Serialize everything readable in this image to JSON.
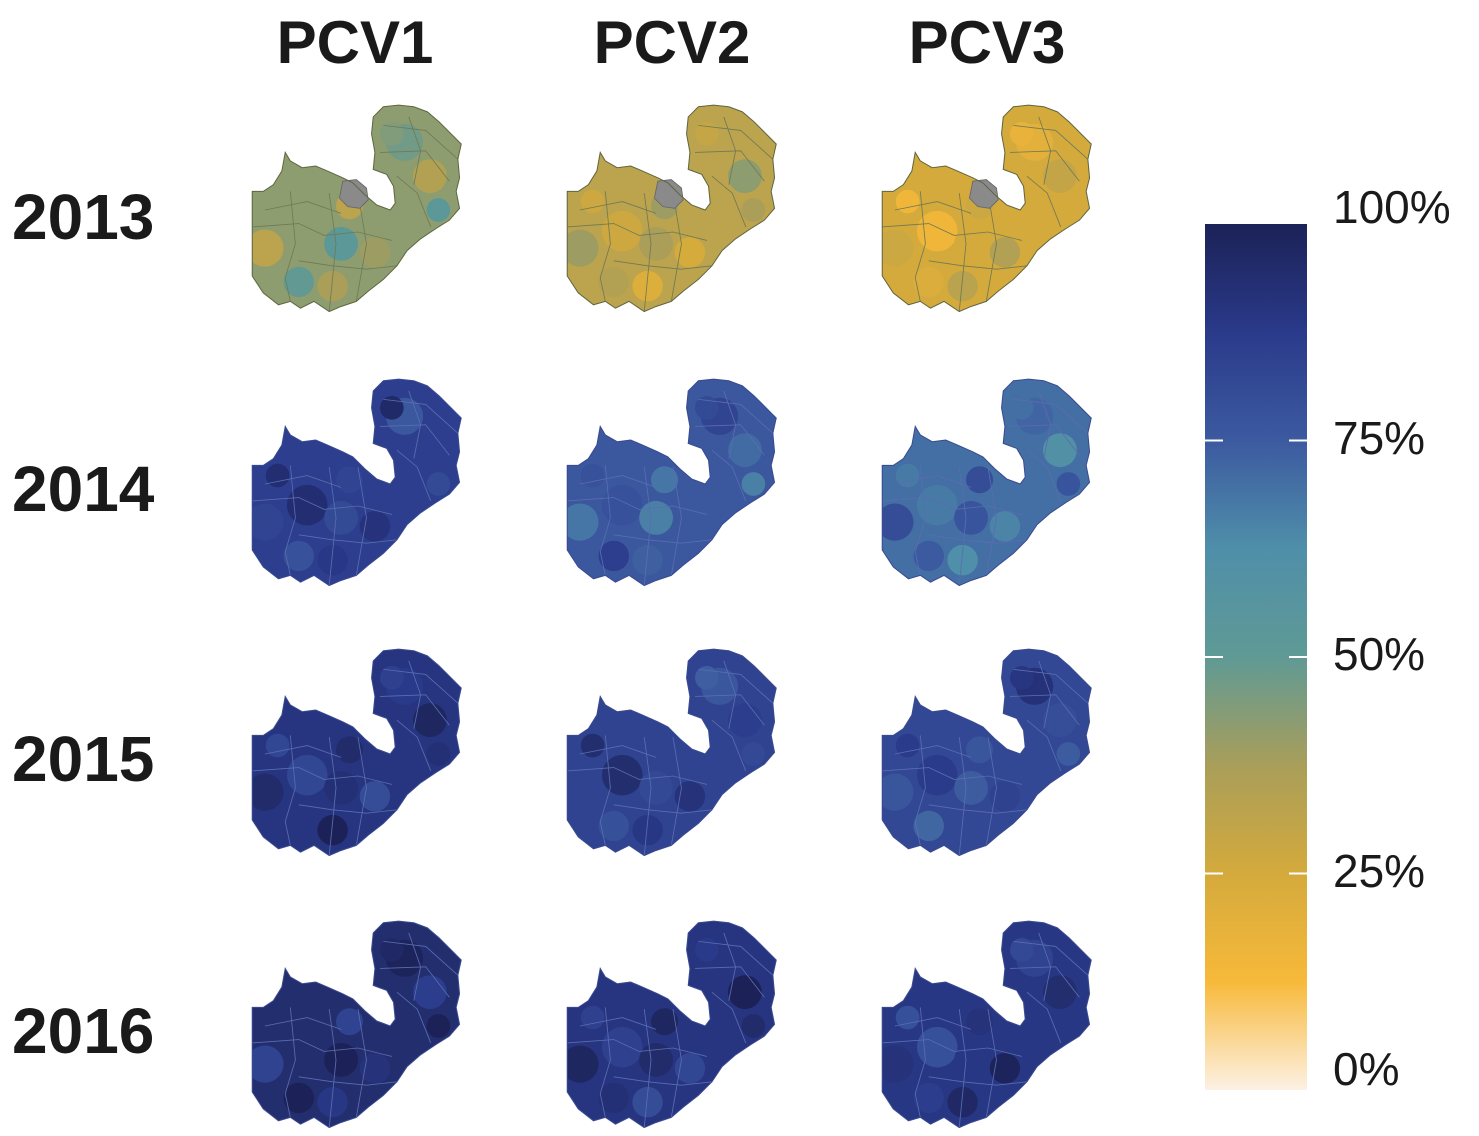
{
  "columns": [
    {
      "label": "PCV1"
    },
    {
      "label": "PCV2"
    },
    {
      "label": "PCV3"
    }
  ],
  "rows": [
    {
      "label": "2013"
    },
    {
      "label": "2014"
    },
    {
      "label": "2015"
    },
    {
      "label": "2016"
    }
  ],
  "legend": {
    "ticks": [
      {
        "value": 100,
        "label": "100%"
      },
      {
        "value": 75,
        "label": "75%"
      },
      {
        "value": 50,
        "label": "50%"
      },
      {
        "value": 25,
        "label": "25%"
      },
      {
        "value": 0,
        "label": "0%"
      }
    ],
    "scale_colors": [
      "#fdf1e4",
      "#f7b93a",
      "#d4aa3c",
      "#a99e5a",
      "#5f9a95",
      "#4f8fa9",
      "#3c5aa0",
      "#2a3a8a",
      "#1c2257"
    ],
    "missing_color": "#8a8a8a"
  },
  "maps": [
    {
      "year": "2013",
      "dose": "PCV1",
      "coverage_level": 0.42
    },
    {
      "year": "2013",
      "dose": "PCV2",
      "coverage_level": 0.32
    },
    {
      "year": "2013",
      "dose": "PCV3",
      "coverage_level": 0.25
    },
    {
      "year": "2014",
      "dose": "PCV1",
      "coverage_level": 0.86
    },
    {
      "year": "2014",
      "dose": "PCV2",
      "coverage_level": 0.76
    },
    {
      "year": "2014",
      "dose": "PCV3",
      "coverage_level": 0.7
    },
    {
      "year": "2015",
      "dose": "PCV1",
      "coverage_level": 0.9
    },
    {
      "year": "2015",
      "dose": "PCV2",
      "coverage_level": 0.84
    },
    {
      "year": "2015",
      "dose": "PCV3",
      "coverage_level": 0.82
    },
    {
      "year": "2016",
      "dose": "PCV1",
      "coverage_level": 0.94
    },
    {
      "year": "2016",
      "dose": "PCV2",
      "coverage_level": 0.9
    },
    {
      "year": "2016",
      "dose": "PCV3",
      "coverage_level": 0.89
    }
  ]
}
